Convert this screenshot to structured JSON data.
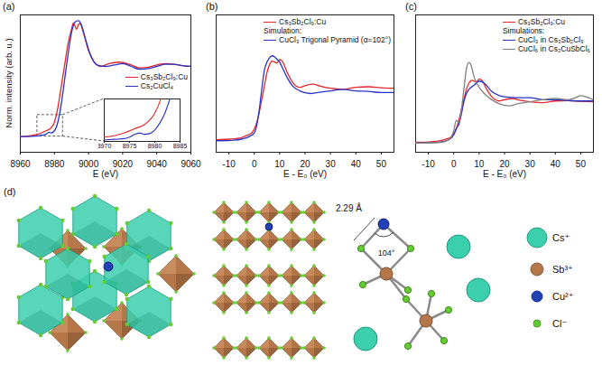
{
  "chart_data": [
    {
      "type": "line",
      "title": "(a)",
      "xlabel": "E (eV)",
      "ylabel": "Norm. intensity (arb. u.)",
      "xlim": [
        8960,
        9060
      ],
      "xticks": [
        8960,
        8980,
        9000,
        9020,
        9040,
        9060
      ],
      "ylim": [
        -0.22,
        1.7
      ],
      "tick_labels": "x",
      "legend": "right",
      "series": [
        {
          "name": "Cs₃Sb₂Cl₉:Cu",
          "color": "#e6262c",
          "x": [
            8960,
            8965,
            8970,
            8975,
            8978,
            8980,
            8982,
            8984,
            8986,
            8988,
            8990,
            8991,
            8992,
            8993,
            8994,
            8995,
            8997,
            9000,
            9003,
            9007,
            9012,
            9018,
            9025,
            9030,
            9035,
            9040,
            9045,
            9050,
            9055,
            9060
          ],
          "values": [
            0.0,
            0.01,
            0.03,
            0.08,
            0.12,
            0.2,
            0.4,
            0.7,
            1.0,
            1.3,
            1.5,
            1.58,
            1.55,
            1.5,
            1.56,
            1.58,
            1.45,
            1.2,
            1.05,
            0.98,
            1.02,
            1.04,
            1.0,
            0.96,
            0.97,
            1.0,
            1.02,
            1.01,
            0.99,
            0.98
          ]
        },
        {
          "name": "Cs₂CuCl₄",
          "color": "#2832c8",
          "x": [
            8960,
            8965,
            8970,
            8975,
            8977,
            8978,
            8980,
            8982,
            8984,
            8986,
            8988,
            8990,
            8992,
            8994,
            8996,
            8998,
            9001,
            9005,
            9010,
            9015,
            9020,
            9025,
            9030,
            9035,
            9040,
            9045,
            9050,
            9055,
            9060
          ],
          "values": [
            0.0,
            0.0,
            0.01,
            0.03,
            0.06,
            0.05,
            0.08,
            0.2,
            0.45,
            0.8,
            1.15,
            1.45,
            1.6,
            1.62,
            1.55,
            1.38,
            1.15,
            1.0,
            0.98,
            1.0,
            1.02,
            0.98,
            0.94,
            0.95,
            0.98,
            1.01,
            1.01,
            0.99,
            0.98
          ]
        }
      ],
      "inset": {
        "type": "line",
        "xlim": [
          8970,
          8985
        ],
        "xticks": [
          8970,
          8975,
          8980,
          8985
        ],
        "ylim": [
          0,
          0.3
        ],
        "tick_labels": "x",
        "series": [
          {
            "color": "#e6262c",
            "x": [
              8970,
              8972,
              8974,
              8976,
              8978,
              8980,
              8981,
              8982
            ],
            "values": [
              0.03,
              0.04,
              0.06,
              0.09,
              0.12,
              0.2,
              0.28,
              0.4
            ]
          },
          {
            "color": "#2832c8",
            "x": [
              8970,
              8972,
              8974,
              8975,
              8976,
              8977,
              8978,
              8979,
              8980,
              8981,
              8982,
              8983
            ],
            "values": [
              0.01,
              0.015,
              0.02,
              0.03,
              0.05,
              0.06,
              0.05,
              0.055,
              0.08,
              0.13,
              0.2,
              0.3
            ]
          }
        ]
      }
    },
    {
      "type": "line",
      "title": "(b)",
      "xlabel": "E - E₀ (eV)",
      "xlim": [
        -15,
        55
      ],
      "xticks": [
        -10,
        0,
        10,
        20,
        30,
        40,
        50
      ],
      "ylim": [
        -0.22,
        2.4
      ],
      "tick_labels": "x",
      "legend": "top right",
      "legend_title": "Simulation:",
      "series": [
        {
          "name": "Cs₃Sb₂Cl₉:Cu",
          "color": "#e6262c",
          "x": [
            -15,
            -10,
            -5,
            -3,
            -1,
            0,
            1,
            2,
            3,
            4,
            5,
            6,
            7,
            8,
            9,
            10,
            11,
            13,
            15,
            18,
            20,
            23,
            26,
            30,
            35,
            40,
            45,
            50,
            55
          ],
          "values": [
            0.02,
            0.03,
            0.06,
            0.1,
            0.15,
            0.22,
            0.35,
            0.55,
            0.8,
            1.05,
            1.3,
            1.45,
            1.52,
            1.5,
            1.48,
            1.55,
            1.52,
            1.3,
            1.12,
            1.02,
            1.05,
            1.08,
            1.04,
            1.0,
            0.98,
            1.02,
            1.03,
            1.01,
            1.0
          ]
        },
        {
          "name": "CuCl₃ Trigonal Pyramid (α=102°)",
          "color": "#2832c8",
          "x": [
            -15,
            -8,
            -5,
            -2,
            0,
            1,
            2,
            3,
            4,
            5,
            6,
            7,
            8,
            9,
            10,
            11,
            13,
            15,
            18,
            22,
            25,
            30,
            35,
            40,
            45,
            50,
            55
          ],
          "values": [
            0.0,
            0.01,
            0.03,
            0.08,
            0.15,
            0.3,
            0.6,
            1.0,
            1.35,
            1.5,
            1.58,
            1.62,
            1.6,
            1.55,
            1.5,
            1.4,
            1.2,
            1.05,
            0.95,
            0.9,
            0.92,
            0.95,
            0.98,
            0.95,
            0.94,
            0.92,
            0.92
          ]
        }
      ]
    },
    {
      "type": "line",
      "title": "(c)",
      "xlabel": "E - E₀ (eV)",
      "xlim": [
        -15,
        55
      ],
      "xticks": [
        -10,
        0,
        10,
        20,
        30,
        40,
        50
      ],
      "ylim": [
        -0.22,
        3.1
      ],
      "tick_labels": "x",
      "legend": "top right",
      "legend_title": "Simulations:",
      "series": [
        {
          "name": "Cs₃Sb₂Cl₉:Cu",
          "color": "#e6262c",
          "x": [
            -15,
            -10,
            -5,
            -3,
            -1,
            0,
            1,
            2,
            3,
            4,
            5,
            6,
            7,
            8,
            9,
            10,
            11,
            13,
            15,
            18,
            20,
            23,
            26,
            30,
            35,
            40,
            45,
            50,
            55
          ],
          "values": [
            0.02,
            0.03,
            0.06,
            0.1,
            0.15,
            0.22,
            0.35,
            0.55,
            0.8,
            1.05,
            1.3,
            1.45,
            1.52,
            1.5,
            1.48,
            1.55,
            1.52,
            1.3,
            1.12,
            1.02,
            1.05,
            1.08,
            1.04,
            1.0,
            0.98,
            1.02,
            1.03,
            1.01,
            1.0
          ]
        },
        {
          "name": "CuCl₃ in Cs₃Sb₂Cl₉",
          "color": "#2832c8",
          "x": [
            -15,
            -10,
            -5,
            -2,
            0,
            1,
            2,
            3,
            4,
            5,
            6,
            8,
            10,
            12,
            15,
            18,
            20,
            25,
            30,
            35,
            40,
            45,
            50,
            55
          ],
          "values": [
            0.0,
            0.01,
            0.03,
            0.08,
            0.2,
            0.35,
            0.45,
            0.7,
            1.0,
            1.2,
            1.3,
            1.4,
            1.5,
            1.45,
            1.25,
            1.15,
            1.12,
            1.1,
            1.1,
            1.05,
            1.05,
            1.03,
            1.02,
            1.02
          ]
        },
        {
          "name": "CuCl₆ in Cs₂CuSbCl₆",
          "color": "#808080",
          "x": [
            -15,
            -5,
            -2,
            0,
            1,
            2,
            3,
            4,
            5,
            6,
            7,
            8,
            9,
            10,
            12,
            15,
            18,
            22,
            25,
            30,
            35,
            40,
            45,
            48,
            50,
            52,
            55
          ],
          "values": [
            0.0,
            0.02,
            0.08,
            0.3,
            0.55,
            0.5,
            0.8,
            1.3,
            1.8,
            1.95,
            1.85,
            1.6,
            1.45,
            1.35,
            1.2,
            1.05,
            0.95,
            0.9,
            0.95,
            1.0,
            1.05,
            1.08,
            1.05,
            1.1,
            1.15,
            1.12,
            1.05
          ]
        }
      ]
    }
  ],
  "diagram": {
    "title": "(d)",
    "bond_length_label": "2.29 Å",
    "angle_label": "104°",
    "legend": [
      {
        "label": "Cs⁺",
        "color": "#3ccfae"
      },
      {
        "label": "Sb³⁺",
        "color": "#b5774a"
      },
      {
        "label": "Cu²⁺",
        "color": "#2040b8"
      },
      {
        "label": "Cl⁻",
        "color": "#63cc32"
      }
    ]
  }
}
